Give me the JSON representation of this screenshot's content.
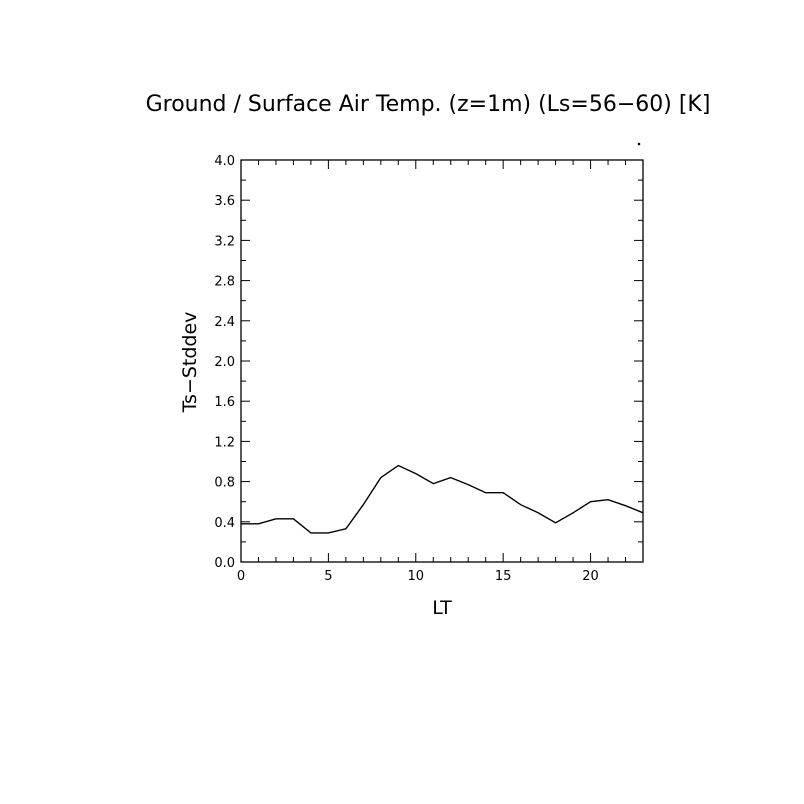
{
  "chart_data": {
    "type": "line",
    "title": "Ground / Surface Air Temp. (z=1m) (Ls=56−60) [K]",
    "xlabel": "LT",
    "ylabel": "Ts−Stddev",
    "xlim": [
      0,
      23
    ],
    "ylim": [
      0.0,
      4.0
    ],
    "x_ticks": [
      0,
      5,
      10,
      15,
      20
    ],
    "x_tick_labels": [
      "0",
      "5",
      "10",
      "15",
      "20"
    ],
    "y_ticks": [
      0.0,
      0.4,
      0.8,
      1.2,
      1.6,
      2.0,
      2.4,
      2.8,
      3.2,
      3.6,
      4.0
    ],
    "y_tick_labels": [
      "0.0",
      "0.4",
      "0.8",
      "1.2",
      "1.6",
      "2.0",
      "2.4",
      "2.8",
      "3.2",
      "3.6",
      "4.0"
    ],
    "grid": false,
    "legend": "none",
    "line_color": "#000000",
    "series": [
      {
        "x": [
          0,
          1,
          2,
          3,
          4,
          5,
          6,
          7,
          8,
          9,
          10,
          11,
          12,
          13,
          14,
          15,
          16,
          17,
          18,
          19,
          20,
          21,
          22,
          23
        ],
        "values": [
          0.38,
          0.38,
          0.43,
          0.43,
          0.29,
          0.29,
          0.33,
          0.57,
          0.84,
          0.96,
          0.88,
          0.78,
          0.84,
          0.77,
          0.69,
          0.69,
          0.57,
          0.49,
          0.39,
          0.49,
          0.6,
          0.62,
          0.56,
          0.49
        ]
      }
    ]
  }
}
